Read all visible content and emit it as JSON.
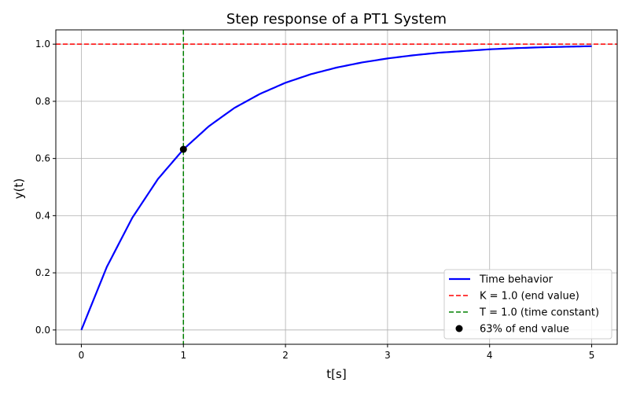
{
  "chart_data": {
    "type": "line",
    "title": "Step response of a PT1 System",
    "xlabel": "t[s]",
    "ylabel": "y(t)",
    "xlim": [
      -0.25,
      5.25
    ],
    "ylim": [
      -0.05,
      1.05
    ],
    "xticks": [
      0,
      1,
      2,
      3,
      4,
      5
    ],
    "yticks": [
      0.0,
      0.2,
      0.4,
      0.6,
      0.8,
      1.0
    ],
    "xtick_labels": [
      "0",
      "1",
      "2",
      "3",
      "4",
      "5"
    ],
    "ytick_labels": [
      "0.0",
      "0.2",
      "0.4",
      "0.6",
      "0.8",
      "1.0"
    ],
    "grid": true,
    "legend_position": "bottom-right",
    "series": [
      {
        "name": "Time behavior",
        "kind": "line",
        "color": "#0000ff",
        "x": [
          0,
          0.25,
          0.5,
          0.75,
          1.0,
          1.25,
          1.5,
          1.75,
          2.0,
          2.25,
          2.5,
          2.75,
          3.0,
          3.25,
          3.5,
          3.75,
          4.0,
          4.25,
          4.5,
          4.75,
          5.0
        ],
        "y": [
          0.0,
          0.221,
          0.393,
          0.528,
          0.632,
          0.713,
          0.777,
          0.826,
          0.865,
          0.895,
          0.918,
          0.936,
          0.95,
          0.961,
          0.97,
          0.976,
          0.982,
          0.986,
          0.989,
          0.991,
          0.993
        ]
      },
      {
        "name": "K = 1.0 (end value)",
        "kind": "hline",
        "color": "#ff0000",
        "y": 1.0
      },
      {
        "name": "T = 1.0 (time constant)",
        "kind": "vline",
        "color": "#008000",
        "x": 1.0
      },
      {
        "name": "63% of end value",
        "kind": "point",
        "color": "#000000",
        "x": 1.0,
        "y": 0.632
      }
    ]
  }
}
